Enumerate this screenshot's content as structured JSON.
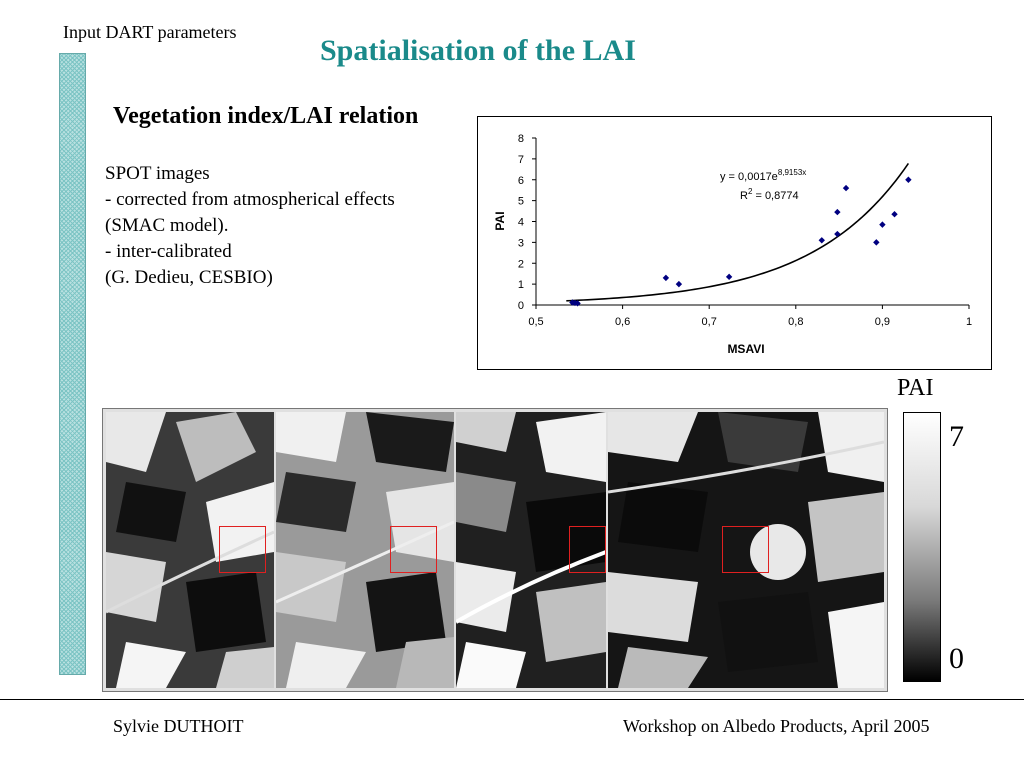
{
  "header": {
    "label": "Input DART parameters",
    "title": "Spatialisation of the LAI"
  },
  "section": {
    "title": "Vegetation index/LAI relation"
  },
  "description": {
    "lines": [
      "SPOT images",
      "- corrected from atmospherical effects",
      "(SMAC model).",
      "- inter-calibrated",
      "(G. Dedieu, CESBIO)"
    ]
  },
  "chart_data": {
    "type": "scatter",
    "xlabel": "MSAVI",
    "ylabel": "PAI",
    "xlim": [
      0.5,
      1
    ],
    "ylim": [
      0,
      8
    ],
    "x_ticks": [
      "0,5",
      "0,6",
      "0,7",
      "0,8",
      "0,9",
      "1"
    ],
    "y_ticks": [
      "0",
      "1",
      "2",
      "3",
      "4",
      "5",
      "6",
      "7",
      "8"
    ],
    "points": [
      {
        "x": 0.542,
        "y": 0.12
      },
      {
        "x": 0.545,
        "y": 0.1
      },
      {
        "x": 0.548,
        "y": 0.08
      },
      {
        "x": 0.65,
        "y": 1.3
      },
      {
        "x": 0.665,
        "y": 1.0
      },
      {
        "x": 0.723,
        "y": 1.35
      },
      {
        "x": 0.83,
        "y": 3.1
      },
      {
        "x": 0.848,
        "y": 3.4
      },
      {
        "x": 0.848,
        "y": 4.45
      },
      {
        "x": 0.858,
        "y": 5.6
      },
      {
        "x": 0.893,
        "y": 3.0
      },
      {
        "x": 0.9,
        "y": 3.85
      },
      {
        "x": 0.914,
        "y": 4.35
      },
      {
        "x": 0.93,
        "y": 6.0
      }
    ],
    "fit": {
      "type": "exponential",
      "a": 0.0017,
      "b": 8.9153,
      "x_range": [
        0.535,
        0.93
      ]
    },
    "equation": {
      "prefix": "y = 0,0017e",
      "exponent": "8,9153x",
      "r2_prefix": "R",
      "r2_sup": "2",
      "r2_value": " = 0,8774"
    },
    "marker_color": "#000080",
    "grid": false
  },
  "imagery": {
    "panels": 4,
    "roi_color": "#e02020"
  },
  "legend": {
    "title": "PAI",
    "max": "7",
    "min": "0"
  },
  "footer": {
    "author": "Sylvie DUTHOIT",
    "event": "Workshop on Albedo Products, April 2005"
  }
}
